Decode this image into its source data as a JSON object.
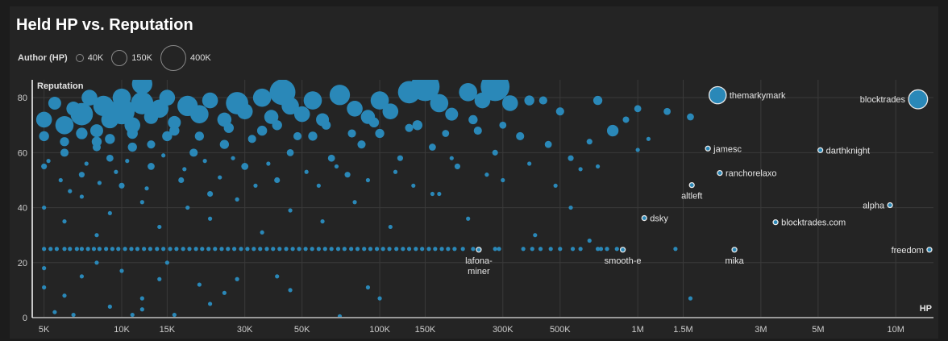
{
  "title": "Held HP vs. Reputation",
  "legend": {
    "label": "Author (HP)",
    "items": [
      {
        "label": "40K",
        "value": 40
      },
      {
        "label": "150K",
        "value": 150
      },
      {
        "label": "400K",
        "value": 400
      }
    ]
  },
  "colors": {
    "point": "#2a88b8",
    "grid": "#3a3a3a",
    "text": "#e6e6e6"
  },
  "chart_data": {
    "type": "scatter",
    "title": "Held HP vs. Reputation",
    "xlabel": "HP",
    "ylabel": "Reputation",
    "xscale": "log",
    "xlim": [
      4500,
      14000000
    ],
    "ylim": [
      0,
      86.5
    ],
    "grid": true,
    "size_encoding": "Author (HP), thousands",
    "x_ticks": [
      {
        "v": 5000,
        "label": "5K"
      },
      {
        "v": 10000,
        "label": "10K"
      },
      {
        "v": 15000,
        "label": "15K"
      },
      {
        "v": 30000,
        "label": "30K"
      },
      {
        "v": 50000,
        "label": "50K"
      },
      {
        "v": 100000,
        "label": "100K"
      },
      {
        "v": 150000,
        "label": "150K"
      },
      {
        "v": 300000,
        "label": "300K"
      },
      {
        "v": 500000,
        "label": "500K"
      },
      {
        "v": 1000000,
        "label": "1M"
      },
      {
        "v": 1500000,
        "label": "1.5M"
      },
      {
        "v": 3000000,
        "label": "3M"
      },
      {
        "v": 5000000,
        "label": "5M"
      },
      {
        "v": 10000000,
        "label": "10M"
      }
    ],
    "y_ticks": [
      {
        "v": 0,
        "label": "0"
      },
      {
        "v": 20,
        "label": "20"
      },
      {
        "v": 40,
        "label": "40"
      },
      {
        "v": 60,
        "label": "60"
      },
      {
        "v": 80,
        "label": "80"
      }
    ],
    "points_hpK_rep_authorK": [
      [
        5,
        72,
        150
      ],
      [
        5.5,
        78,
        100
      ],
      [
        6,
        70,
        200
      ],
      [
        6.5,
        76,
        120
      ],
      [
        7,
        74,
        300
      ],
      [
        7.5,
        80,
        150
      ],
      [
        8,
        68,
        100
      ],
      [
        8.5,
        77,
        250
      ],
      [
        9,
        72,
        180
      ],
      [
        10,
        75,
        400
      ],
      [
        10,
        80,
        200
      ],
      [
        11,
        70,
        150
      ],
      [
        12,
        78,
        300
      ],
      [
        13,
        73,
        120
      ],
      [
        14,
        76,
        200
      ],
      [
        15,
        80,
        150
      ],
      [
        16,
        71,
        100
      ],
      [
        18,
        77,
        250
      ],
      [
        20,
        74,
        200
      ],
      [
        22,
        79,
        150
      ],
      [
        25,
        72,
        120
      ],
      [
        28,
        78,
        300
      ],
      [
        30,
        75,
        150
      ],
      [
        35,
        80,
        200
      ],
      [
        38,
        73,
        120
      ],
      [
        42,
        82,
        400
      ],
      [
        45,
        77,
        180
      ],
      [
        50,
        74,
        150
      ],
      [
        55,
        79,
        200
      ],
      [
        60,
        72,
        100
      ],
      [
        70,
        81,
        250
      ],
      [
        80,
        76,
        150
      ],
      [
        90,
        73,
        120
      ],
      [
        100,
        79,
        200
      ],
      [
        110,
        75,
        150
      ],
      [
        130,
        82,
        300
      ],
      [
        150,
        84,
        500
      ],
      [
        170,
        78,
        200
      ],
      [
        190,
        74,
        100
      ],
      [
        220,
        82,
        200
      ],
      [
        250,
        79,
        150
      ],
      [
        280,
        84,
        500
      ],
      [
        320,
        78,
        150
      ],
      [
        380,
        79,
        60
      ],
      [
        430,
        79,
        40
      ],
      [
        500,
        75,
        40
      ],
      [
        700,
        79,
        50
      ],
      [
        1000,
        76,
        30
      ],
      [
        1300,
        75,
        30
      ],
      [
        1600,
        73,
        30
      ],
      [
        800,
        68,
        80
      ],
      [
        900,
        72,
        25
      ],
      [
        12,
        85,
        250
      ],
      [
        5,
        66,
        60
      ],
      [
        6,
        64,
        50
      ],
      [
        7,
        67,
        80
      ],
      [
        8,
        62,
        40
      ],
      [
        9,
        65,
        60
      ],
      [
        11,
        67,
        70
      ],
      [
        13,
        63,
        40
      ],
      [
        16,
        68,
        60
      ],
      [
        20,
        66,
        50
      ],
      [
        26,
        69,
        60
      ],
      [
        32,
        65,
        40
      ],
      [
        40,
        70,
        60
      ],
      [
        48,
        66,
        40
      ],
      [
        62,
        70,
        50
      ],
      [
        78,
        67,
        40
      ],
      [
        95,
        71,
        60
      ],
      [
        130,
        69,
        40
      ],
      [
        180,
        67,
        30
      ],
      [
        230,
        72,
        50
      ],
      [
        300,
        70,
        30
      ],
      [
        5,
        55,
        20
      ],
      [
        6,
        60,
        40
      ],
      [
        7,
        52,
        20
      ],
      [
        8,
        64,
        60
      ],
      [
        9,
        58,
        30
      ],
      [
        10,
        48,
        20
      ],
      [
        11,
        62,
        50
      ],
      [
        13,
        55,
        30
      ],
      [
        15,
        66,
        60
      ],
      [
        17,
        50,
        20
      ],
      [
        19,
        60,
        40
      ],
      [
        22,
        45,
        20
      ],
      [
        25,
        63,
        50
      ],
      [
        30,
        55,
        30
      ],
      [
        35,
        68,
        60
      ],
      [
        40,
        50,
        20
      ],
      [
        45,
        60,
        30
      ],
      [
        55,
        66,
        50
      ],
      [
        65,
        58,
        30
      ],
      [
        75,
        52,
        20
      ],
      [
        85,
        63,
        40
      ],
      [
        100,
        67,
        50
      ],
      [
        120,
        58,
        20
      ],
      [
        140,
        70,
        60
      ],
      [
        160,
        62,
        30
      ],
      [
        200,
        55,
        20
      ],
      [
        240,
        68,
        40
      ],
      [
        280,
        60,
        20
      ],
      [
        350,
        66,
        40
      ],
      [
        450,
        63,
        30
      ],
      [
        550,
        58,
        20
      ],
      [
        650,
        64,
        20
      ],
      [
        1000,
        61,
        10
      ],
      [
        1100,
        65,
        10
      ],
      [
        600,
        54,
        10
      ],
      [
        700,
        55,
        10
      ],
      [
        300,
        50,
        10
      ],
      [
        170,
        45,
        10
      ],
      [
        5.2,
        57,
        10
      ],
      [
        5.8,
        50,
        10
      ],
      [
        6.3,
        46,
        10
      ],
      [
        7.3,
        56,
        10
      ],
      [
        8.2,
        49,
        10
      ],
      [
        9.5,
        53,
        10
      ],
      [
        10.5,
        57,
        10
      ],
      [
        12.5,
        47,
        10
      ],
      [
        14.5,
        59,
        10
      ],
      [
        17.5,
        54,
        10
      ],
      [
        21,
        57,
        10
      ],
      [
        24,
        51,
        10
      ],
      [
        27,
        58,
        10
      ],
      [
        33,
        48,
        10
      ],
      [
        37,
        56,
        10
      ],
      [
        52,
        53,
        10
      ],
      [
        58,
        48,
        10
      ],
      [
        68,
        55,
        10
      ],
      [
        90,
        50,
        10
      ],
      [
        115,
        53,
        10
      ],
      [
        135,
        48,
        10
      ],
      [
        190,
        58,
        10
      ],
      [
        260,
        52,
        10
      ],
      [
        380,
        56,
        10
      ],
      [
        480,
        48,
        10
      ],
      [
        5,
        40,
        10
      ],
      [
        6,
        35,
        10
      ],
      [
        7,
        44,
        10
      ],
      [
        8,
        30,
        10
      ],
      [
        9,
        38,
        10
      ],
      [
        12,
        42,
        10
      ],
      [
        14,
        33,
        10
      ],
      [
        18,
        40,
        10
      ],
      [
        22,
        36,
        10
      ],
      [
        28,
        43,
        10
      ],
      [
        35,
        31,
        10
      ],
      [
        45,
        39,
        10
      ],
      [
        60,
        35,
        10
      ],
      [
        80,
        42,
        10
      ],
      [
        110,
        33,
        10
      ],
      [
        160,
        45,
        10
      ],
      [
        220,
        36,
        10
      ],
      [
        550,
        40,
        10
      ],
      [
        400,
        30,
        10
      ],
      [
        650,
        28,
        10
      ],
      [
        5,
        18,
        10
      ],
      [
        5,
        11,
        10
      ],
      [
        5.5,
        2,
        10
      ],
      [
        6,
        8,
        10
      ],
      [
        6.5,
        1,
        10
      ],
      [
        7,
        15,
        10
      ],
      [
        8,
        20,
        10
      ],
      [
        9,
        4,
        10
      ],
      [
        10,
        17,
        10
      ],
      [
        11,
        1,
        10
      ],
      [
        12,
        7,
        10
      ],
      [
        12,
        3,
        10
      ],
      [
        14,
        14,
        10
      ],
      [
        16,
        1,
        10
      ],
      [
        20,
        12,
        10
      ],
      [
        22,
        5,
        10
      ],
      [
        25,
        9,
        10
      ],
      [
        28,
        14,
        10
      ],
      [
        40,
        15,
        10
      ],
      [
        45,
        10,
        10
      ],
      [
        70,
        0.5,
        10
      ],
      [
        90,
        11,
        10
      ],
      [
        1600,
        7,
        10
      ],
      [
        100,
        7,
        10
      ],
      [
        15,
        20,
        10
      ]
    ],
    "band_rep25_hpK": [
      5,
      5.3,
      5.6,
      6,
      6.3,
      6.7,
      7,
      7.4,
      7.8,
      8.2,
      8.7,
      9.2,
      9.7,
      10.3,
      10.9,
      11.5,
      12.2,
      12.9,
      13.7,
      14.5,
      15.4,
      16.3,
      17.3,
      18.3,
      19.4,
      20.5,
      21.7,
      23,
      24.4,
      25.8,
      27.3,
      29,
      30.7,
      32.5,
      34.4,
      36.5,
      38.6,
      40.9,
      43.4,
      46,
      48.7,
      51.6,
      54.7,
      58,
      61.4,
      65,
      69,
      73,
      77.5,
      82,
      87,
      92,
      97.5,
      103,
      109,
      116,
      123,
      130,
      138,
      146,
      155,
      164,
      174,
      184,
      195,
      210,
      230,
      280,
      290,
      360,
      390,
      420,
      460,
      500,
      560,
      600,
      700,
      720,
      760,
      830,
      1400
    ],
    "labeled": [
      {
        "name": "themarkymark",
        "hp": 2040000,
        "rep": 80.9,
        "author": 300,
        "anchor": "right"
      },
      {
        "name": "blocktrades",
        "hp": 12200000,
        "rep": 79.4,
        "author": 400,
        "anchor": "left"
      },
      {
        "name": "jamesc",
        "hp": 1870000,
        "rep": 61.5,
        "author": 10,
        "anchor": "right"
      },
      {
        "name": "darthknight",
        "hp": 5100000,
        "rep": 60.9,
        "author": 10,
        "anchor": "right"
      },
      {
        "name": "ranchorelaxo",
        "hp": 2080000,
        "rep": 52.6,
        "author": 10,
        "anchor": "right"
      },
      {
        "name": "altleft",
        "hp": 1620000,
        "rep": 48.2,
        "author": 10,
        "anchor": "below"
      },
      {
        "name": "alpha",
        "hp": 9500000,
        "rep": 40.9,
        "author": 10,
        "anchor": "left"
      },
      {
        "name": "dsky",
        "hp": 1060000,
        "rep": 36.2,
        "author": 10,
        "anchor": "right"
      },
      {
        "name": "blocktrades.com",
        "hp": 3420000,
        "rep": 34.7,
        "author": 10,
        "anchor": "right"
      },
      {
        "name": "freedom",
        "hp": 13500000,
        "rep": 24.7,
        "author": 10,
        "anchor": "left"
      },
      {
        "name": "mika",
        "hp": 2370000,
        "rep": 24.7,
        "author": 10,
        "anchor": "below"
      },
      {
        "name": "smooth-e",
        "hp": 875000,
        "rep": 24.7,
        "author": 10,
        "anchor": "below"
      },
      {
        "name": "lafona-miner",
        "hp": 242000,
        "rep": 24.7,
        "author": 10,
        "anchor": "below",
        "lines": [
          "lafona-",
          "miner"
        ]
      }
    ]
  }
}
